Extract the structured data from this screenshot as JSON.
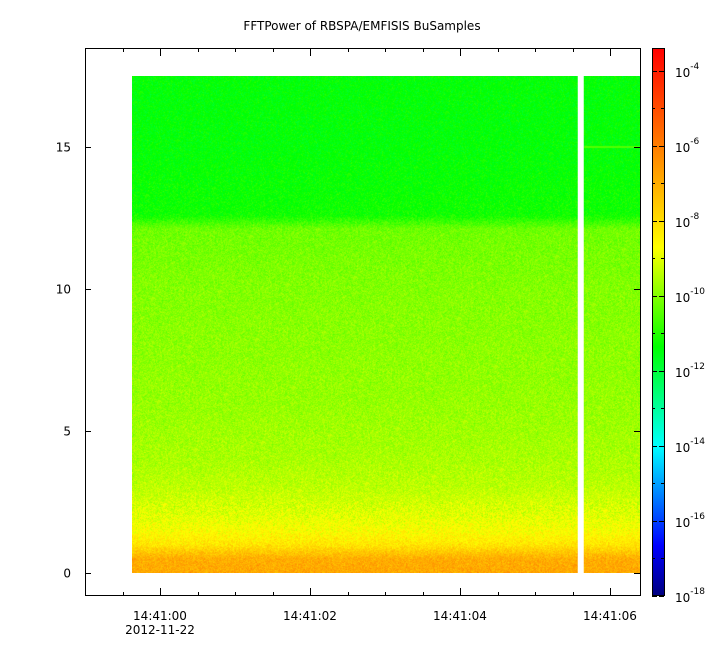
{
  "chart_data": {
    "type": "heatmap",
    "title": "FFTPower of RBSPA/EMFISIS  BuSamples",
    "xlabel": "",
    "ylabel": "",
    "x_ticks": [
      {
        "label": "14:41:00",
        "sublabel": "2012-11-22",
        "t": 0
      },
      {
        "label": "14:41:02",
        "t": 2
      },
      {
        "label": "14:41:04",
        "t": 4
      },
      {
        "label": "14:41:06",
        "t": 6
      }
    ],
    "xlim": [
      -1.0,
      6.4
    ],
    "ylim": [
      -0.8,
      18.5
    ],
    "y_ticks": [
      0,
      5,
      10,
      15
    ],
    "data_extent": {
      "x_start": -0.37,
      "x_end": 6.4,
      "y_min": 0,
      "y_max": 17.5
    },
    "data_gaps": [
      {
        "x_start": 5.57,
        "x_end": 5.65
      }
    ],
    "features": [
      {
        "type": "faint horizontal line",
        "y": 15,
        "x_start": 5.65,
        "x_end": 6.4
      }
    ],
    "profile": [
      {
        "y": 0.0,
        "log10_power": -6.9
      },
      {
        "y": 0.5,
        "log10_power": -7.0
      },
      {
        "y": 1.0,
        "log10_power": -8.2
      },
      {
        "y": 1.5,
        "log10_power": -8.7
      },
      {
        "y": 2.0,
        "log10_power": -9.0
      },
      {
        "y": 3.0,
        "log10_power": -9.4
      },
      {
        "y": 4.0,
        "log10_power": -9.6
      },
      {
        "y": 6.0,
        "log10_power": -9.8
      },
      {
        "y": 8.0,
        "log10_power": -9.9
      },
      {
        "y": 10.0,
        "log10_power": -10.0
      },
      {
        "y": 12.1,
        "log10_power": -10.2
      },
      {
        "y": 12.6,
        "log10_power": -11.2
      },
      {
        "y": 15.0,
        "log10_power": -11.4
      },
      {
        "y": 17.5,
        "log10_power": -11.4
      }
    ],
    "colorbar": {
      "scale": "log",
      "range_exponents": [
        -18,
        -3.4
      ],
      "tick_exponents": [
        -18,
        -16,
        -14,
        -12,
        -10,
        -8,
        -6,
        -4
      ],
      "tick_base": "10",
      "colormap": [
        "#00007f",
        "#0000ff",
        "#007fff",
        "#00ffff",
        "#00ff7f",
        "#00ff00",
        "#7fff00",
        "#ffff00",
        "#ffbf00",
        "#ff7f00",
        "#ff3f00",
        "#ff0000"
      ]
    },
    "grid": false,
    "legend": "none"
  }
}
